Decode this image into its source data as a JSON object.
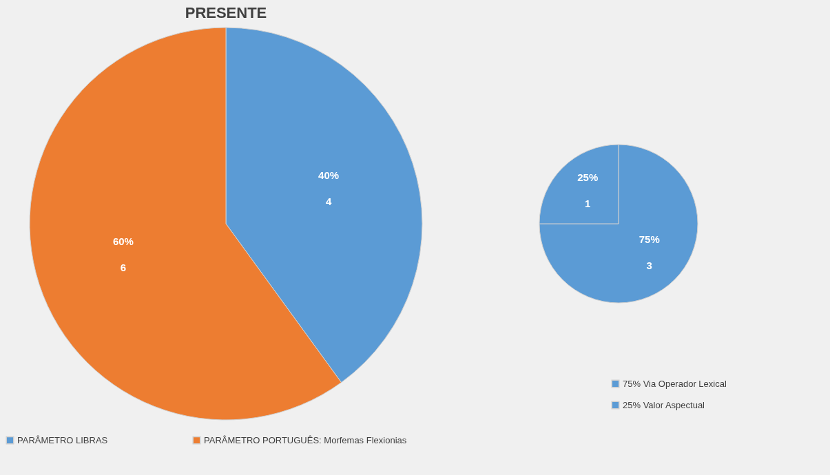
{
  "chart_data": [
    {
      "type": "pie",
      "title": "PRESENTE",
      "categories": [
        "PARÂMETRO LIBRAS",
        "PARÂMETRO PORTUGUÊS: Morfemas Flexionias"
      ],
      "values": [
        40,
        60
      ],
      "colors": [
        "#5b9bd5",
        "#ed7d31"
      ],
      "value_labels": [
        "40%",
        "60%"
      ],
      "annotations": [
        {
          "text": "4",
          "x": "PARÂMETRO LIBRAS"
        },
        {
          "text": "6",
          "x": "PARÂMETRO PORTUGUÊS: Morfemas Flexionias"
        }
      ],
      "legend": "bottom"
    },
    {
      "type": "pie",
      "categories": [
        "Via Operador Lexical",
        "Valor Aspectual"
      ],
      "values": [
        75,
        25
      ],
      "colors": [
        "#5b9bd5",
        "#5b9bd5"
      ],
      "value_labels": [
        "75%",
        "25%"
      ],
      "annotations": [
        {
          "text": "3",
          "x": "Via Operador Lexical"
        },
        {
          "text": "1",
          "x": "Valor Aspectual"
        }
      ],
      "legend": "bottom right"
    }
  ]
}
